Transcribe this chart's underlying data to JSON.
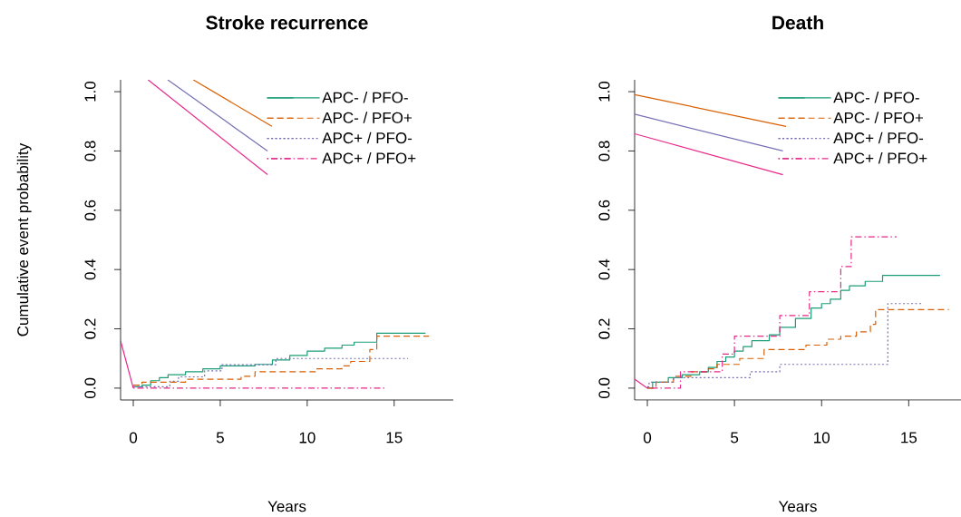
{
  "chart_data": [
    {
      "type": "step",
      "title": "Stroke recurrence",
      "xlabel": "Years",
      "ylabel": "Cumulative event probability",
      "legend": "top right",
      "xlim": [
        -0.73,
        18.4
      ],
      "ylim": [
        -0.04,
        1.04
      ],
      "xticks": [
        0,
        5,
        10,
        15
      ],
      "yticks": [
        {
          "value": 0,
          "label": "0.0"
        },
        {
          "value": 0.2,
          "label": "0.2"
        },
        {
          "value": 0.4,
          "label": "0.4"
        },
        {
          "value": 0.6,
          "label": "0.6"
        },
        {
          "value": 0.8,
          "label": "0.8"
        },
        {
          "value": 1.0,
          "label": "1.0"
        }
      ],
      "series": [
        {
          "type": "line",
          "color": "#d95f02",
          "line_style": "solid",
          "x": [
            3.45,
            7.97
          ],
          "values": [
            1.04,
            0.883
          ]
        },
        {
          "type": "line",
          "color": "#7570b3",
          "line_style": "solid",
          "x": [
            1.98,
            7.72
          ],
          "values": [
            1.04,
            0.8
          ]
        },
        {
          "type": "line",
          "color": "#e7298a",
          "line_style": "solid",
          "x": [
            0.85,
            7.72
          ],
          "values": [
            1.04,
            0.72
          ]
        },
        {
          "type": "line",
          "color": "#e7298a",
          "line_style": "solid",
          "x": [
            -0.73,
            0
          ],
          "values": [
            0.16,
            0
          ]
        },
        {
          "name": "APC- / PFO-",
          "color": "#1b9e77",
          "line_style": "solid",
          "x": [
            0,
            0.5,
            1,
            1.5,
            2,
            3,
            4,
            5,
            7,
            8,
            9,
            10,
            11,
            12,
            12.7,
            14.0,
            16.8
          ],
          "values": [
            0.005,
            0.01,
            0.025,
            0.035,
            0.045,
            0.055,
            0.065,
            0.075,
            0.08,
            0.095,
            0.11,
            0.125,
            0.135,
            0.145,
            0.155,
            0.185,
            0.185
          ]
        },
        {
          "name": "APC- / PFO+",
          "color": "#d95f02",
          "line_style": "dashed",
          "x": [
            0,
            0.5,
            3,
            6.2,
            7,
            10.5,
            12,
            12.5,
            13.6,
            14,
            17
          ],
          "values": [
            0.01,
            0.02,
            0.03,
            0.04,
            0.055,
            0.065,
            0.075,
            0.09,
            0.13,
            0.175,
            0.175
          ]
        },
        {
          "name": "APC+ / PFO-",
          "color": "#7570b3",
          "line_style": "dotted",
          "x": [
            0,
            2.1,
            2.6,
            4.1,
            5.1,
            8.2,
            15.8
          ],
          "values": [
            0.005,
            0.023,
            0.038,
            0.058,
            0.079,
            0.1,
            0.1
          ]
        },
        {
          "name": "APC+ / PFO+",
          "color": "#e7298a",
          "line_style": "dashdot",
          "x": [
            0,
            14.5
          ],
          "values": [
            0,
            0
          ]
        }
      ]
    },
    {
      "type": "step",
      "title": "Death",
      "xlabel": "Years",
      "legend": "top right",
      "xlim": [
        -0.73,
        18.0
      ],
      "ylim": [
        -0.04,
        1.04
      ],
      "xticks": [
        0,
        5,
        10,
        15
      ],
      "yticks": [
        {
          "value": 0,
          "label": "0.0"
        },
        {
          "value": 0.2,
          "label": "0.2"
        },
        {
          "value": 0.4,
          "label": "0.4"
        },
        {
          "value": 0.6,
          "label": "0.6"
        },
        {
          "value": 0.8,
          "label": "0.8"
        },
        {
          "value": 1.0,
          "label": "1.0"
        }
      ],
      "series": [
        {
          "type": "line",
          "color": "#d95f02",
          "line_style": "solid",
          "x": [
            -0.73,
            7.96
          ],
          "values": [
            0.99,
            0.883
          ]
        },
        {
          "type": "line",
          "color": "#7570b3",
          "line_style": "solid",
          "x": [
            -0.73,
            7.78
          ],
          "values": [
            0.924,
            0.8
          ]
        },
        {
          "type": "line",
          "color": "#e7298a",
          "line_style": "solid",
          "x": [
            -0.73,
            7.78
          ],
          "values": [
            0.858,
            0.72
          ]
        },
        {
          "type": "line",
          "color": "#e7298a",
          "line_style": "solid",
          "x": [
            -0.73,
            0
          ],
          "values": [
            0.03,
            0
          ]
        },
        {
          "name": "APC- / PFO-",
          "color": "#1b9e77",
          "line_style": "solid",
          "x": [
            0,
            0.3,
            1.2,
            2,
            3,
            3.5,
            4,
            4.5,
            5,
            5.5,
            6,
            7,
            7.6,
            8.5,
            9.4,
            10,
            10.5,
            11.1,
            11.6,
            12.5,
            13.5,
            16.8
          ],
          "values": [
            0,
            0.02,
            0.035,
            0.045,
            0.055,
            0.07,
            0.09,
            0.105,
            0.125,
            0.14,
            0.16,
            0.18,
            0.205,
            0.235,
            0.27,
            0.285,
            0.3,
            0.33,
            0.345,
            0.36,
            0.38,
            0.38
          ]
        },
        {
          "name": "APC- / PFO+",
          "color": "#d95f02",
          "line_style": "dashed",
          "x": [
            0,
            0.5,
            1.5,
            2.5,
            3.5,
            4,
            5.3,
            6.7,
            9.1,
            10.3,
            11.1,
            12,
            12.8,
            13.1,
            17.3
          ],
          "values": [
            0,
            0.02,
            0.04,
            0.055,
            0.065,
            0.08,
            0.1,
            0.13,
            0.145,
            0.165,
            0.175,
            0.19,
            0.215,
            0.265,
            0.265
          ]
        },
        {
          "name": "APC+ / PFO-",
          "color": "#7570b3",
          "line_style": "dotted",
          "x": [
            0,
            0.1,
            1.5,
            5.9,
            7.6,
            13.8,
            15.8
          ],
          "values": [
            0.005,
            0.02,
            0.035,
            0.055,
            0.08,
            0.285,
            0.285
          ]
        },
        {
          "name": "APC+ / PFO+",
          "color": "#e7298a",
          "line_style": "dashdot",
          "x": [
            0,
            1.9,
            4.3,
            5.0,
            7.6,
            9.3,
            11.1,
            11.7,
            14.3
          ],
          "values": [
            0,
            0.055,
            0.115,
            0.175,
            0.245,
            0.325,
            0.41,
            0.51,
            0.51
          ]
        }
      ]
    }
  ]
}
